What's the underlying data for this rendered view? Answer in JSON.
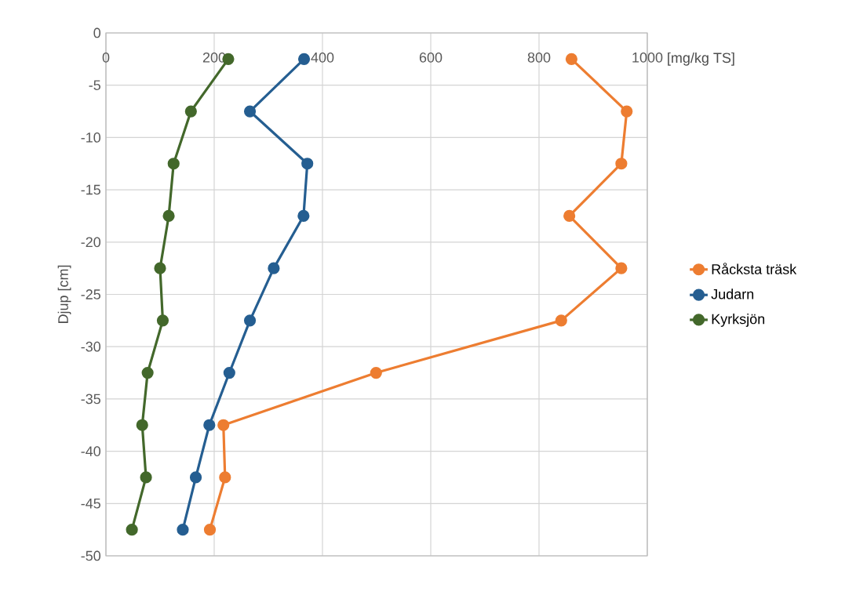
{
  "chart_data": {
    "type": "line",
    "xlabel": "[mg/kg TS]",
    "ylabel": "Djup [cm]",
    "xlim": [
      0,
      1000
    ],
    "xticks": [
      0,
      200,
      400,
      600,
      800,
      1000
    ],
    "ylim": [
      -50,
      0
    ],
    "yticks": [
      -50,
      -45,
      -40,
      -35,
      -30,
      -25,
      -20,
      -15,
      -10,
      -5,
      0
    ],
    "grid": true,
    "legend": "right",
    "marker": "circle",
    "line_style": "solid",
    "series": [
      {
        "name": "Råcksta träsk",
        "color": "#ed7d31",
        "x": [
          860,
          962,
          952,
          856,
          952,
          841,
          499,
          217,
          220,
          192
        ],
        "values": [
          -2.5,
          -7.5,
          -12.5,
          -17.5,
          -22.5,
          -27.5,
          -32.5,
          -37.5,
          -42.5,
          -47.5
        ]
      },
      {
        "name": "Judarn",
        "color": "#255e91",
        "x": [
          366,
          266,
          372,
          365,
          310,
          266,
          228,
          191,
          166,
          142
        ],
        "values": [
          -2.5,
          -7.5,
          -12.5,
          -17.5,
          -22.5,
          -27.5,
          -32.5,
          -37.5,
          -42.5,
          -47.5
        ]
      },
      {
        "name": "Kyrksjön",
        "color": "#43682b",
        "x": [
          226,
          157,
          125,
          116,
          100,
          105,
          77,
          67,
          74,
          48
        ],
        "values": [
          -2.5,
          -7.5,
          -12.5,
          -17.5,
          -22.5,
          -27.5,
          -32.5,
          -37.5,
          -42.5,
          -47.5
        ]
      }
    ]
  }
}
